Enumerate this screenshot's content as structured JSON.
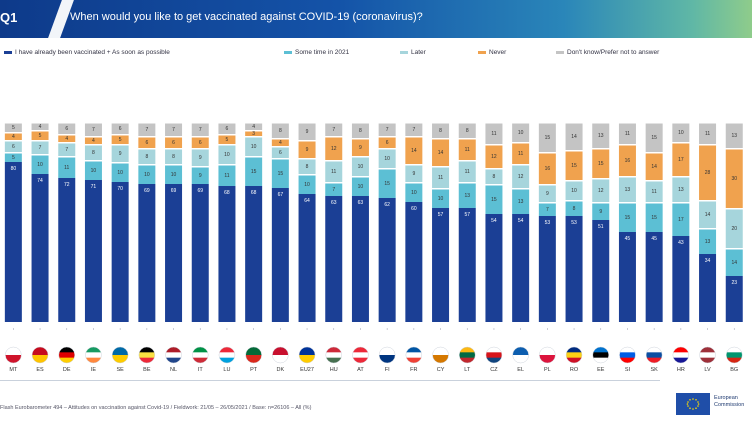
{
  "question": {
    "id": "Q1",
    "text": "When would you like to get vaccinated against COVID-19 (coronavirus)?"
  },
  "footnote": "Flash Eurobarometer 494 – Attitudes on vaccination against Covid-19   /   Fieldwork: 21/05 – 26/05/2021   /   Base: n=26106 – All (%)",
  "eu_logo": {
    "line1": "European",
    "line2": "Commission"
  },
  "colors": {
    "vaccinated": "#1b3f95",
    "asap": "#2a9fbf",
    "sometime": "#5cbfd4",
    "later": "#a6d5dc",
    "never": "#f0a24e",
    "dk": "#c4c4c4"
  },
  "legend": [
    {
      "key": "vaccinated",
      "label": "I have already been vaccinated + As soon as possible"
    },
    {
      "key": "sometime",
      "label": "Some time in 2021"
    },
    {
      "key": "later",
      "label": "Later"
    },
    {
      "key": "never",
      "label": "Never"
    },
    {
      "key": "dk",
      "label": "Don't know/Prefer not to answer"
    }
  ],
  "chart_data": {
    "type": "bar",
    "stacked": true,
    "title": "When would you like to get vaccinated against COVID-19 (coronavirus)?",
    "categories": [
      "MT",
      "ES",
      "DE",
      "IE",
      "SE",
      "BE",
      "NL",
      "IT",
      "LU",
      "PT",
      "DK",
      "EU27",
      "HU",
      "AT",
      "FI",
      "FR",
      "CY",
      "LT",
      "CZ",
      "EL",
      "PL",
      "RO",
      "EE",
      "SI",
      "SK",
      "HR",
      "LV",
      "BG"
    ],
    "series": [
      {
        "name": "I have already been vaccinated + As soon as possible",
        "key": "vaccinated",
        "values": [
          80,
          74,
          72,
          71,
          70,
          69,
          69,
          69,
          68,
          68,
          67,
          64,
          63,
          63,
          62,
          60,
          57,
          57,
          54,
          54,
          53,
          53,
          51,
          45,
          45,
          43,
          34,
          23
        ]
      },
      {
        "name": "Some time in 2021",
        "key": "sometime",
        "values": [
          5,
          10,
          11,
          10,
          10,
          10,
          10,
          9,
          11,
          15,
          15,
          10,
          7,
          10,
          15,
          10,
          10,
          13,
          15,
          13,
          7,
          8,
          9,
          15,
          15,
          17,
          13,
          14
        ]
      },
      {
        "name": "Later",
        "key": "later",
        "values": [
          6,
          7,
          7,
          8,
          9,
          8,
          8,
          9,
          10,
          10,
          6,
          8,
          11,
          10,
          10,
          9,
          11,
          11,
          8,
          12,
          9,
          10,
          12,
          13,
          11,
          13,
          14,
          20
        ]
      },
      {
        "name": "Never",
        "key": "never",
        "values": [
          4,
          5,
          4,
          4,
          5,
          6,
          6,
          6,
          5,
          3,
          4,
          9,
          12,
          9,
          6,
          14,
          14,
          11,
          12,
          11,
          16,
          15,
          15,
          16,
          14,
          17,
          28,
          30
        ]
      },
      {
        "name": "Don't know/Prefer not to answer",
        "key": "dk",
        "values": [
          5,
          4,
          6,
          7,
          6,
          7,
          7,
          7,
          6,
          4,
          8,
          9,
          7,
          8,
          7,
          7,
          8,
          8,
          11,
          10,
          15,
          14,
          13,
          11,
          15,
          10,
          11,
          13
        ]
      }
    ],
    "ylim": [
      0,
      100
    ],
    "xlabel": "",
    "ylabel": ""
  }
}
